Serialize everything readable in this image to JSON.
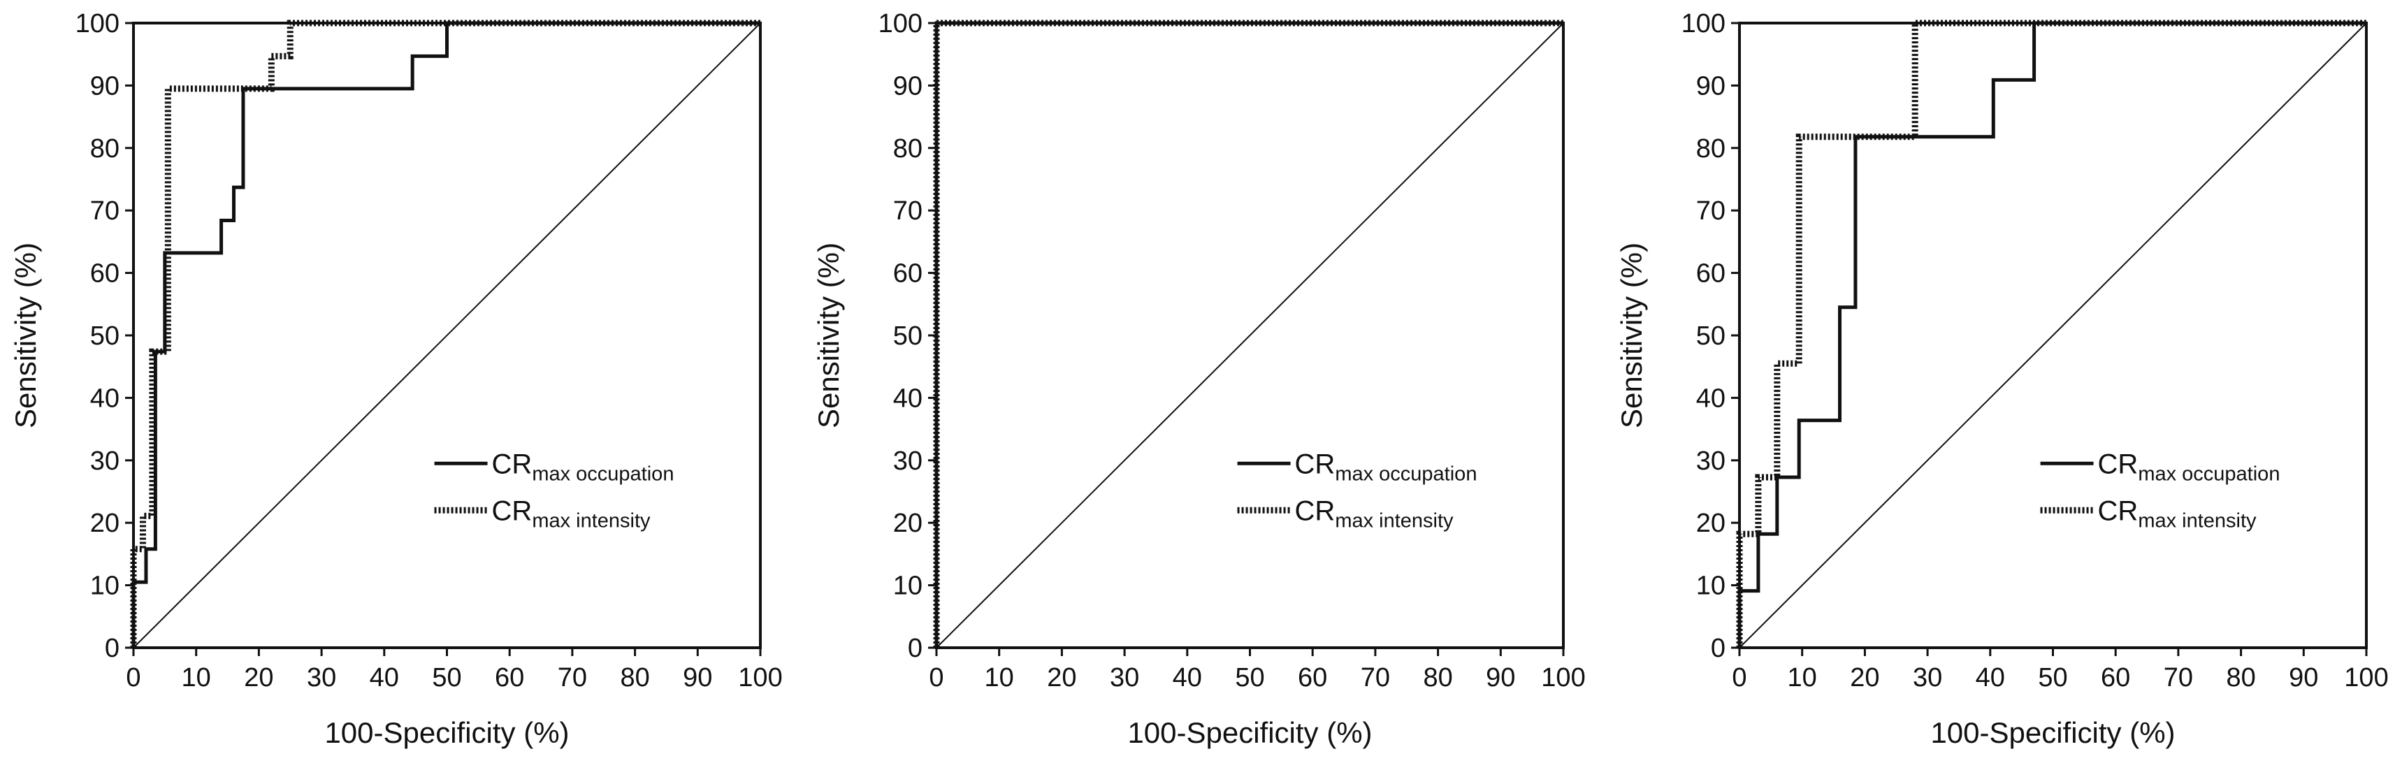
{
  "chart_data": [
    {
      "type": "line",
      "x_label": "100-Specificity (%)",
      "y_label": "Sensitivity (%)",
      "xlim": [
        0,
        100
      ],
      "ylim": [
        0,
        100
      ],
      "xticks": [
        0,
        10,
        20,
        30,
        40,
        50,
        60,
        70,
        80,
        90,
        100
      ],
      "yticks": [
        0,
        10,
        20,
        30,
        40,
        50,
        60,
        70,
        80,
        90,
        100
      ],
      "series": [
        {
          "name": "CR",
          "subscript": "max occupation",
          "color": "#111111",
          "style": "solid",
          "x": [
            0,
            0,
            2,
            2,
            3.5,
            3.5,
            5,
            5,
            14,
            14,
            16,
            16,
            17.5,
            17.5,
            44.5,
            44.5,
            50,
            50,
            100
          ],
          "values": [
            0,
            10.5,
            10.5,
            15.8,
            15.8,
            47.4,
            47.4,
            63.2,
            63.2,
            68.4,
            68.4,
            73.7,
            73.7,
            89.5,
            89.5,
            94.7,
            94.7,
            100,
            100
          ]
        },
        {
          "name": "CR",
          "subscript": "max intensity",
          "color": "#111111",
          "style": "dotted",
          "x": [
            0,
            0,
            1.5,
            1.5,
            3,
            3,
            5.5,
            5.5,
            22,
            22,
            25,
            25,
            100
          ],
          "values": [
            0,
            15.8,
            15.8,
            21.1,
            21.1,
            47.4,
            47.4,
            89.5,
            89.5,
            94.7,
            94.7,
            100,
            100
          ]
        }
      ]
    },
    {
      "type": "line",
      "x_label": "100-Specificity (%)",
      "y_label": "Sensitivity (%)",
      "xlim": [
        0,
        100
      ],
      "ylim": [
        0,
        100
      ],
      "xticks": [
        0,
        10,
        20,
        30,
        40,
        50,
        60,
        70,
        80,
        90,
        100
      ],
      "yticks": [
        0,
        10,
        20,
        30,
        40,
        50,
        60,
        70,
        80,
        90,
        100
      ],
      "series": [
        {
          "name": "CR",
          "subscript": "max occupation",
          "color": "#111111",
          "style": "solid",
          "x": [
            0,
            0,
            100
          ],
          "values": [
            0,
            100,
            100
          ]
        },
        {
          "name": "CR",
          "subscript": "max intensity",
          "color": "#111111",
          "style": "dotted",
          "x": [
            0,
            0,
            100
          ],
          "values": [
            0,
            100,
            100
          ]
        }
      ]
    },
    {
      "type": "line",
      "x_label": "100-Specificity (%)",
      "y_label": "Sensitivity (%)",
      "xlim": [
        0,
        100
      ],
      "ylim": [
        0,
        100
      ],
      "xticks": [
        0,
        10,
        20,
        30,
        40,
        50,
        60,
        70,
        80,
        90,
        100
      ],
      "yticks": [
        0,
        10,
        20,
        30,
        40,
        50,
        60,
        70,
        80,
        90,
        100
      ],
      "series": [
        {
          "name": "CR",
          "subscript": "max occupation",
          "color": "#111111",
          "style": "solid",
          "x": [
            0,
            0,
            3,
            3,
            6,
            6,
            9.5,
            9.5,
            16,
            16,
            18.5,
            18.5,
            40.5,
            40.5,
            47,
            47,
            100
          ],
          "values": [
            0,
            9.1,
            9.1,
            18.2,
            18.2,
            27.3,
            27.3,
            36.4,
            36.4,
            54.5,
            54.5,
            81.8,
            81.8,
            90.9,
            90.9,
            100,
            100
          ]
        },
        {
          "name": "CR",
          "subscript": "max intensity",
          "color": "#111111",
          "style": "dotted",
          "x": [
            0,
            0,
            3,
            3,
            6,
            6,
            9.5,
            9.5,
            28,
            28,
            100
          ],
          "values": [
            0,
            18.2,
            18.2,
            27.3,
            27.3,
            45.5,
            45.5,
            81.8,
            81.8,
            100,
            100
          ]
        }
      ]
    }
  ]
}
